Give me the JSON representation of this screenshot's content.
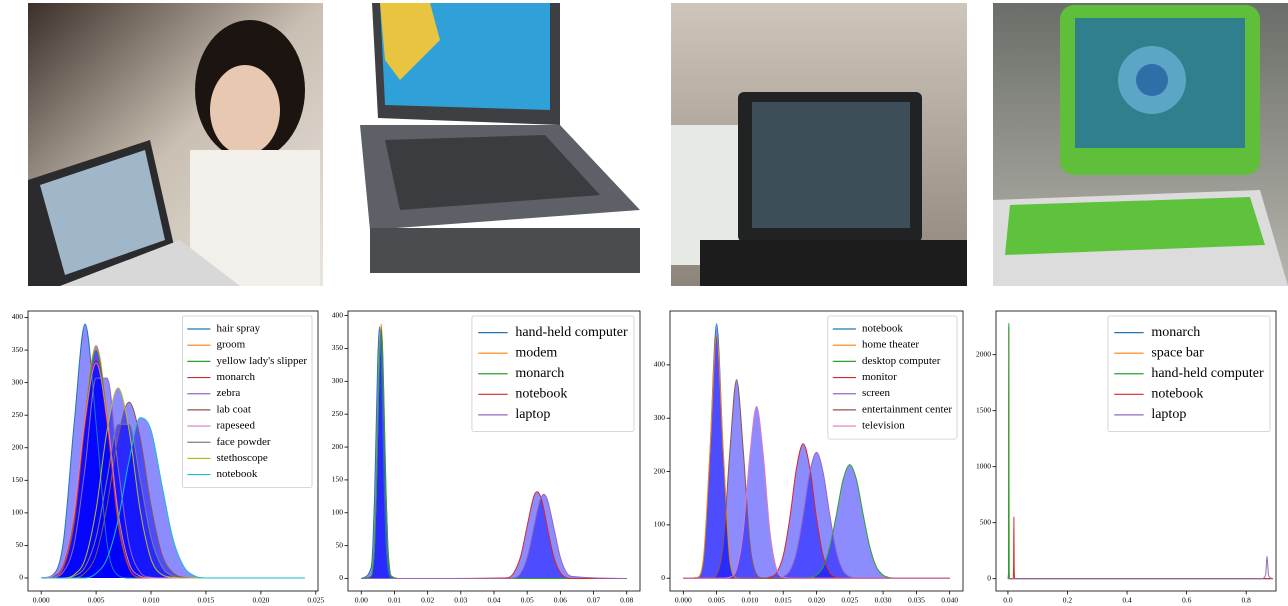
{
  "chart_data": [
    {
      "type": "line",
      "fill": true,
      "fill_color": "#0000ff",
      "legend": "upper right",
      "x": [
        0,
        0.001,
        0.002,
        0.003,
        0.004,
        0.005,
        0.006,
        0.007,
        0.008,
        0.009,
        0.01,
        0.011,
        0.012,
        0.013,
        0.014,
        0.015,
        0.016,
        0.024
      ],
      "series": [
        {
          "name": "hair spray",
          "color": "#1f77b4",
          "values": [
            0,
            4,
            53,
            237,
            390,
            237,
            53,
            4,
            0,
            0,
            0,
            0,
            0,
            0,
            0,
            0,
            0,
            0
          ]
        },
        {
          "name": "groom",
          "color": "#ff7f0e",
          "values": [
            0,
            1,
            16,
            89,
            252,
            357,
            252,
            89,
            16,
            1,
            0,
            0,
            0,
            0,
            0,
            0,
            0,
            0
          ]
        },
        {
          "name": "yellow lady's slipper",
          "color": "#2ca02c",
          "values": [
            0,
            1,
            15,
            87,
            247,
            350,
            247,
            87,
            15,
            1,
            0,
            0,
            0,
            0,
            0,
            0,
            0,
            0
          ]
        },
        {
          "name": "monarch",
          "color": "#d62728",
          "values": [
            0,
            1,
            15,
            83,
            237,
            335,
            237,
            83,
            15,
            1,
            0,
            0,
            0,
            0,
            0,
            0,
            0,
            0
          ]
        },
        {
          "name": "zebra",
          "color": "#9467bd",
          "values": [
            0,
            1,
            9,
            52,
            170,
            307,
            307,
            170,
            52,
            9,
            1,
            0,
            0,
            0,
            0,
            0,
            0,
            0
          ]
        },
        {
          "name": "lab coat",
          "color": "#8c564b",
          "values": [
            0,
            0,
            0,
            0,
            8,
            36,
            111,
            216,
            270,
            216,
            111,
            36,
            8,
            1,
            0,
            0,
            0,
            0
          ]
        },
        {
          "name": "rapeseed",
          "color": "#e377c2",
          "values": [
            0,
            3,
            23,
            101,
            245,
            330,
            245,
            101,
            23,
            3,
            0,
            0,
            0,
            0,
            0,
            0,
            0,
            0
          ]
        },
        {
          "name": "face powder",
          "color": "#7f7f7f",
          "values": [
            0,
            0,
            0,
            3,
            17,
            62,
            152,
            236,
            236,
            152,
            62,
            17,
            3,
            0,
            0,
            0,
            0,
            0
          ]
        },
        {
          "name": "stethoscope",
          "color": "#bcbd22",
          "values": [
            0,
            0,
            0,
            5,
            29,
            105,
            227,
            292,
            227,
            105,
            29,
            5,
            1,
            0,
            0,
            0,
            0,
            0
          ]
        },
        {
          "name": "notebook",
          "color": "#17becf",
          "values": [
            0,
            0,
            0,
            0,
            0,
            7,
            30,
            89,
            180,
            246,
            227,
            142,
            60,
            17,
            3,
            0,
            0,
            0
          ]
        }
      ],
      "xlim": [
        -0.0012,
        0.0252
      ],
      "ylim": [
        -20,
        410
      ],
      "xticks": [
        {
          "value": 0,
          "label": "0.000"
        },
        {
          "value": 0.005,
          "label": "0.005"
        },
        {
          "value": 0.01,
          "label": "0.010"
        },
        {
          "value": 0.015,
          "label": "0.015"
        },
        {
          "value": 0.02,
          "label": "0.020"
        },
        {
          "value": 0.025,
          "label": "0.025"
        }
      ],
      "yticks": [
        0,
        50,
        100,
        150,
        200,
        250,
        300,
        350,
        400
      ]
    },
    {
      "type": "line",
      "fill": true,
      "fill_color": "#0000ff",
      "legend": "upper right",
      "x": [
        0,
        0.003,
        0.0035,
        0.004,
        0.0045,
        0.005,
        0.0055,
        0.006,
        0.0065,
        0.007,
        0.0075,
        0.008,
        0.0085,
        0.009,
        0.012,
        0.044,
        0.046,
        0.048,
        0.05,
        0.052,
        0.053,
        0.054,
        0.055,
        0.056,
        0.058,
        0.06,
        0.062,
        0.064,
        0.08
      ],
      "series": [
        {
          "name": "hand-held computer",
          "color": "#1f77b4",
          "values": [
            0,
            17,
            52,
            124,
            232,
            338,
            383,
            338,
            232,
            124,
            52,
            17,
            4,
            1,
            0,
            0,
            0,
            0,
            0,
            0,
            0,
            0,
            0,
            0,
            0,
            0,
            0,
            0,
            0
          ]
        },
        {
          "name": "modem",
          "color": "#ff7f0e",
          "values": [
            0,
            4,
            17,
            52,
            126,
            235,
            341,
            387,
            341,
            235,
            126,
            52,
            17,
            4,
            0,
            0,
            0,
            0,
            0,
            0,
            0,
            0,
            0,
            0,
            0,
            0,
            0,
            0,
            0
          ]
        },
        {
          "name": "monarch",
          "color": "#2ca02c",
          "values": [
            0,
            4,
            17,
            51,
            124,
            231,
            335,
            380,
            335,
            231,
            124,
            51,
            17,
            4,
            0,
            0,
            0,
            0,
            0,
            0,
            0,
            0,
            0,
            0,
            0,
            0,
            0,
            0,
            0
          ]
        },
        {
          "name": "notebook",
          "color": "#d62728",
          "values": [
            0,
            0,
            0,
            0,
            0,
            0,
            0,
            0,
            0,
            0,
            0,
            0,
            0,
            0,
            0,
            1,
            9,
            33,
            80,
            125,
            132,
            125,
            106,
            80,
            33,
            9,
            1,
            0,
            0
          ]
        },
        {
          "name": "laptop",
          "color": "#9467bd",
          "values": [
            0,
            0,
            0,
            0,
            0,
            0,
            0,
            0,
            0,
            0,
            0,
            0,
            0,
            0,
            0,
            0,
            1,
            8,
            32,
            78,
            102,
            121,
            128,
            121,
            78,
            32,
            8,
            3,
            0
          ]
        }
      ],
      "xlim": [
        -0.004,
        0.084
      ],
      "ylim": [
        -19,
        407
      ],
      "xticks": [
        {
          "value": 0,
          "label": "0.00"
        },
        {
          "value": 0.01,
          "label": "0.01"
        },
        {
          "value": 0.02,
          "label": "0.02"
        },
        {
          "value": 0.03,
          "label": "0.03"
        },
        {
          "value": 0.04,
          "label": "0.04"
        },
        {
          "value": 0.05,
          "label": "0.05"
        },
        {
          "value": 0.06,
          "label": "0.06"
        },
        {
          "value": 0.07,
          "label": "0.07"
        },
        {
          "value": 0.08,
          "label": "0.08"
        }
      ],
      "yticks": [
        0,
        50,
        100,
        150,
        200,
        250,
        300,
        350,
        400
      ]
    },
    {
      "type": "line",
      "fill": true,
      "fill_color": "#0000ff",
      "legend": "upper right",
      "x": [
        0,
        0.001,
        0.002,
        0.003,
        0.004,
        0.005,
        0.006,
        0.007,
        0.008,
        0.009,
        0.01,
        0.011,
        0.012,
        0.013,
        0.014,
        0.015,
        0.016,
        0.017,
        0.018,
        0.019,
        0.02,
        0.021,
        0.022,
        0.023,
        0.024,
        0.025,
        0.026,
        0.027,
        0.028,
        0.029,
        0.03,
        0.031,
        0.032,
        0.04
      ],
      "series": [
        {
          "name": "notebook",
          "color": "#1f77b4",
          "values": [
            0,
            0,
            1,
            28,
            235,
            477,
            235,
            28,
            1,
            0,
            0,
            0,
            0,
            0,
            0,
            0,
            0,
            0,
            0,
            0,
            0,
            0,
            0,
            0,
            0,
            0,
            0,
            0,
            0,
            0,
            0,
            0,
            0,
            0
          ]
        },
        {
          "name": "home theater",
          "color": "#ff7f0e",
          "values": [
            0,
            0,
            1,
            35,
            237,
            455,
            237,
            35,
            1,
            0,
            0,
            0,
            0,
            0,
            0,
            0,
            0,
            0,
            0,
            0,
            0,
            0,
            0,
            0,
            0,
            0,
            0,
            0,
            0,
            0,
            0,
            0,
            0,
            0
          ]
        },
        {
          "name": "desktop computer",
          "color": "#2ca02c",
          "values": [
            0,
            0,
            0,
            0,
            0,
            0,
            0,
            0,
            0,
            0,
            0,
            0,
            0,
            0,
            0,
            0,
            0,
            0,
            0,
            1,
            6,
            21,
            59,
            120,
            185,
            213,
            185,
            120,
            59,
            21,
            6,
            1,
            0,
            0
          ]
        },
        {
          "name": "monitor",
          "color": "#d62728",
          "values": [
            0,
            0,
            0,
            0,
            0,
            0,
            0,
            0,
            0,
            0,
            0,
            0,
            0,
            2,
            10,
            42,
            113,
            207,
            252,
            207,
            113,
            42,
            10,
            2,
            0,
            0,
            0,
            0,
            0,
            0,
            0,
            0,
            0,
            0
          ]
        },
        {
          "name": "screen",
          "color": "#9467bd",
          "values": [
            0,
            0,
            0,
            0,
            0,
            0,
            0,
            0,
            0,
            0,
            0,
            0,
            0,
            0,
            0,
            3,
            14,
            49,
            118,
            198,
            236,
            198,
            118,
            49,
            14,
            3,
            0,
            0,
            0,
            0,
            0,
            0,
            0,
            0
          ]
        },
        {
          "name": "entertainment center",
          "color": "#8c564b",
          "values": [
            0,
            0,
            0,
            0,
            0,
            7,
            65,
            240,
            372,
            240,
            65,
            7,
            0,
            0,
            0,
            0,
            0,
            0,
            0,
            0,
            0,
            0,
            0,
            0,
            0,
            0,
            0,
            0,
            0,
            0,
            0,
            0,
            0,
            0
          ]
        },
        {
          "name": "television",
          "color": "#e377c2",
          "values": [
            0,
            0,
            0,
            0,
            0,
            0,
            0,
            2,
            17,
            88,
            232,
            322,
            232,
            88,
            17,
            2,
            0,
            0,
            0,
            0,
            0,
            0,
            0,
            0,
            0,
            0,
            0,
            0,
            0,
            0,
            0,
            0,
            0,
            0
          ]
        }
      ],
      "xlim": [
        -0.002,
        0.042
      ],
      "ylim": [
        -24,
        501
      ],
      "xticks": [
        {
          "value": 0,
          "label": "0.000"
        },
        {
          "value": 0.005,
          "label": "0.005"
        },
        {
          "value": 0.01,
          "label": "0.010"
        },
        {
          "value": 0.015,
          "label": "0.015"
        },
        {
          "value": 0.02,
          "label": "0.020"
        },
        {
          "value": 0.025,
          "label": "0.025"
        },
        {
          "value": 0.03,
          "label": "0.030"
        },
        {
          "value": 0.035,
          "label": "0.035"
        },
        {
          "value": 0.04,
          "label": "0.040"
        }
      ],
      "yticks": [
        0,
        100,
        200,
        300,
        400
      ]
    },
    {
      "type": "line",
      "fill": false,
      "fill_color": "#0000ff",
      "legend": "upper right",
      "x": [
        0,
        0.002,
        0.003,
        0.004,
        0.006,
        0.017,
        0.019,
        0.02,
        0.021,
        0.023,
        0.85,
        0.865,
        0.87,
        0.875,
        0.89
      ],
      "series": [
        {
          "name": "monarch",
          "color": "#1f77b4",
          "values": [
            0,
            40,
            2250,
            40,
            0,
            0,
            0,
            0,
            0,
            0,
            0,
            0,
            0,
            0,
            0
          ]
        },
        {
          "name": "space bar",
          "color": "#ff7f0e",
          "values": [
            0,
            40,
            2200,
            40,
            0,
            0,
            0,
            0,
            0,
            0,
            0,
            0,
            0,
            0,
            0
          ]
        },
        {
          "name": "hand-held computer",
          "color": "#2ca02c",
          "values": [
            0,
            50,
            2280,
            50,
            0,
            0,
            0,
            0,
            0,
            0,
            0,
            0,
            0,
            0,
            0
          ]
        },
        {
          "name": "notebook",
          "color": "#d62728",
          "values": [
            0,
            0,
            0,
            0,
            0,
            0,
            100,
            550,
            100,
            0,
            0,
            0,
            0,
            0,
            0
          ]
        },
        {
          "name": "laptop",
          "color": "#9467bd",
          "values": [
            0,
            0,
            0,
            0,
            0,
            0,
            0,
            0,
            0,
            0,
            0,
            30,
            200,
            30,
            0
          ]
        }
      ],
      "xlim": [
        -0.04,
        0.9
      ],
      "ylim": [
        -110,
        2390
      ],
      "xticks": [
        {
          "value": 0,
          "label": "0.0"
        },
        {
          "value": 0.2,
          "label": "0.2"
        },
        {
          "value": 0.4,
          "label": "0.4"
        },
        {
          "value": 0.6,
          "label": "0.6"
        },
        {
          "value": 0.8,
          "label": "0.8"
        }
      ],
      "yticks": [
        0,
        500,
        1000,
        1500,
        2000
      ]
    }
  ]
}
